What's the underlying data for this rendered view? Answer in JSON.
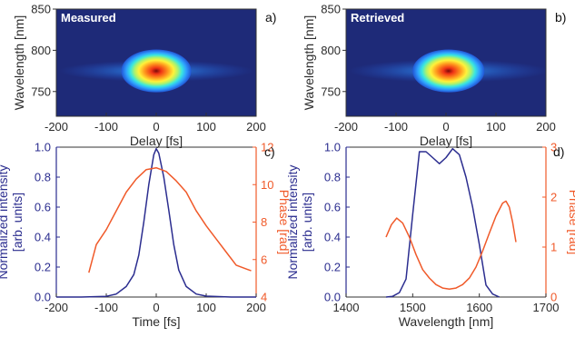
{
  "chart_data": [
    {
      "panel": "a)",
      "type": "heatmap",
      "name": "Measured",
      "xlabel": "Delay [fs]",
      "ylabel": "Wavelength [nm]",
      "xlim": [
        -200,
        200
      ],
      "ylim": [
        720,
        850
      ],
      "xticks": [
        "-200",
        "-100",
        "0",
        "100",
        "200"
      ],
      "yticks": [
        "750",
        "800",
        "850"
      ],
      "peak": {
        "x": 0,
        "y": 775
      },
      "spot": {
        "x_halfwidth": 70,
        "y_halfwidth": 26
      },
      "wings": {
        "x_halfwidth": 195,
        "y_halfwidth": 13
      },
      "colors": [
        "#1e2a78",
        "#2255d4",
        "#2fa0ff",
        "#39e6e0",
        "#aef26c",
        "#fff23a",
        "#ff9a1e",
        "#ef3416",
        "#7a0a0a"
      ]
    },
    {
      "panel": "b)",
      "type": "heatmap",
      "name": "Retrieved",
      "xlabel": "Delay [fs]",
      "ylabel": "Wavelength [nm]",
      "xlim": [
        -200,
        200
      ],
      "ylim": [
        720,
        850
      ],
      "xticks": [
        "-200",
        "-100",
        "0",
        "100",
        "200"
      ],
      "yticks": [
        "750",
        "800",
        "850"
      ],
      "peak": {
        "x": 5,
        "y": 775
      },
      "spot": {
        "x_halfwidth": 72,
        "y_halfwidth": 26
      },
      "wings": {
        "x_halfwidth": 200,
        "y_halfwidth": 14
      },
      "colors": [
        "#1e2a78",
        "#2255d4",
        "#2fa0ff",
        "#39e6e0",
        "#aef26c",
        "#fff23a",
        "#ff9a1e",
        "#ef3416",
        "#7a0a0a"
      ]
    },
    {
      "panel": "c)",
      "type": "line",
      "xlabel": "Time [fs]",
      "ylabel": "Normalized intensity",
      "ylabel2": "[arb. units]",
      "ylabel_right": "Phase [rad]",
      "xlim": [
        -200,
        200
      ],
      "ylim": [
        0,
        1.0
      ],
      "ylim_right": [
        4,
        12
      ],
      "xticks": [
        "-200",
        "-100",
        "0",
        "100",
        "200"
      ],
      "yticks": [
        "0.0",
        "0.2",
        "0.4",
        "0.6",
        "0.8",
        "1.0"
      ],
      "yticks_right": [
        "4",
        "6",
        "8",
        "10",
        "12"
      ],
      "series": [
        {
          "axis": "left",
          "color": "#2b2d8f",
          "x": [
            -200,
            -150,
            -100,
            -80,
            -60,
            -45,
            -35,
            -25,
            -15,
            -5,
            0,
            5,
            15,
            25,
            35,
            45,
            60,
            80,
            100,
            150,
            200
          ],
          "y": [
            0.0,
            0.0,
            0.005,
            0.02,
            0.07,
            0.15,
            0.28,
            0.5,
            0.75,
            0.95,
            0.99,
            0.96,
            0.8,
            0.58,
            0.35,
            0.18,
            0.07,
            0.02,
            0.006,
            0.0,
            0.0
          ]
        },
        {
          "axis": "right",
          "color": "#f05a2a",
          "x": [
            -135,
            -120,
            -100,
            -80,
            -60,
            -40,
            -20,
            0,
            20,
            40,
            60,
            80,
            100,
            120,
            140,
            160,
            180,
            190
          ],
          "y": [
            5.3,
            6.8,
            7.6,
            8.6,
            9.6,
            10.3,
            10.8,
            10.9,
            10.7,
            10.2,
            9.6,
            8.6,
            7.8,
            7.1,
            6.4,
            5.7,
            5.5,
            5.4
          ]
        }
      ]
    },
    {
      "panel": "d)",
      "type": "line",
      "xlabel": "Wavelength [nm]",
      "ylabel": "Normalized intensity",
      "ylabel2": "[arb. units]",
      "ylabel_right": "Phase [rad]",
      "xlim": [
        1400,
        1700
      ],
      "ylim": [
        0,
        1.0
      ],
      "ylim_right": [
        0,
        3
      ],
      "xticks": [
        "1400",
        "1500",
        "1600",
        "1700"
      ],
      "yticks": [
        "0.0",
        "0.2",
        "0.4",
        "0.6",
        "0.8",
        "1.0"
      ],
      "yticks_right": [
        "0",
        "1",
        "2",
        "3"
      ],
      "series": [
        {
          "axis": "left",
          "color": "#2b2d8f",
          "x": [
            1460,
            1470,
            1480,
            1490,
            1500,
            1510,
            1520,
            1530,
            1540,
            1550,
            1560,
            1570,
            1580,
            1590,
            1600,
            1610,
            1620,
            1630
          ],
          "y": [
            0.0,
            0.005,
            0.03,
            0.12,
            0.55,
            0.97,
            0.97,
            0.93,
            0.89,
            0.93,
            0.99,
            0.95,
            0.8,
            0.6,
            0.35,
            0.08,
            0.02,
            0.0
          ]
        },
        {
          "axis": "right",
          "color": "#f05a2a",
          "x": [
            1460,
            1468,
            1476,
            1485,
            1495,
            1505,
            1515,
            1525,
            1535,
            1545,
            1555,
            1565,
            1575,
            1585,
            1595,
            1605,
            1615,
            1625,
            1635,
            1640,
            1645,
            1650,
            1655
          ],
          "y": [
            1.2,
            1.45,
            1.58,
            1.48,
            1.2,
            0.85,
            0.55,
            0.38,
            0.25,
            0.18,
            0.16,
            0.18,
            0.25,
            0.38,
            0.6,
            0.92,
            1.28,
            1.62,
            1.88,
            1.92,
            1.8,
            1.5,
            1.1
          ]
        }
      ]
    }
  ]
}
